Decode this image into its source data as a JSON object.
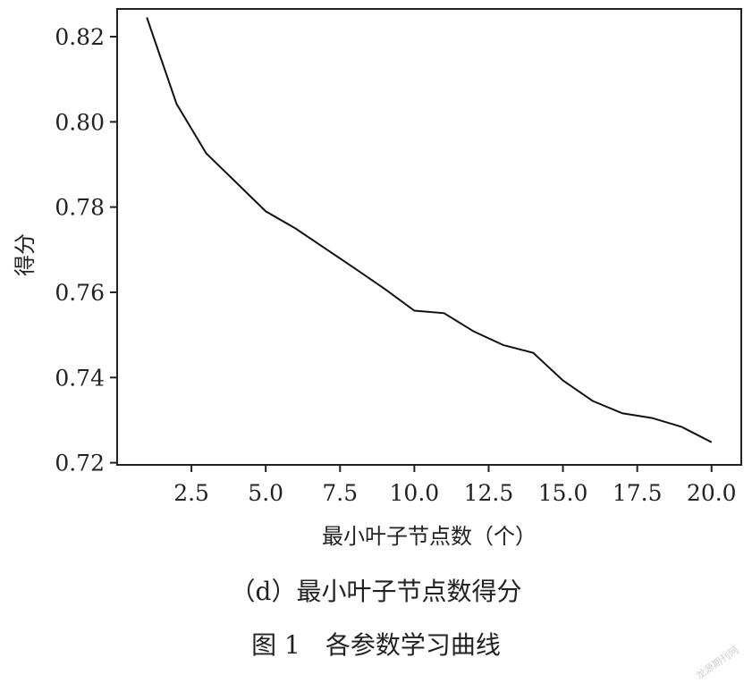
{
  "chart_data": {
    "type": "line",
    "title": "",
    "xlabel": "最小叶子节点数（个）",
    "ylabel": "得分",
    "xlim": [
      0.0,
      21.0
    ],
    "ylim": [
      0.7195,
      0.8265
    ],
    "xticks": [
      2.5,
      5.0,
      7.5,
      10.0,
      12.5,
      15.0,
      17.5,
      20.0
    ],
    "xtick_labels": [
      "2.5",
      "5.0",
      "7.5",
      "10.0",
      "12.5",
      "15.0",
      "17.5",
      "20.0"
    ],
    "yticks": [
      0.72,
      0.74,
      0.76,
      0.78,
      0.8,
      0.82
    ],
    "ytick_labels": [
      "0.72",
      "0.74",
      "0.76",
      "0.78",
      "0.80",
      "0.82"
    ],
    "grid": false,
    "series": [
      {
        "color": "#111111",
        "x": [
          1,
          2,
          3,
          4,
          5,
          6,
          7,
          8,
          9,
          10,
          11,
          12,
          13,
          14,
          15,
          16,
          17,
          18,
          19,
          20
        ],
        "y": [
          0.8245,
          0.8042,
          0.7926,
          0.7858,
          0.779,
          0.775,
          0.7703,
          0.7656,
          0.7608,
          0.7557,
          0.7551,
          0.7508,
          0.7476,
          0.7458,
          0.7393,
          0.7345,
          0.7316,
          0.7305,
          0.7284,
          0.7248
        ]
      }
    ]
  },
  "captions": {
    "sub": "（d）最小叶子节点数得分",
    "figure": "图 1　各参数学习曲线"
  },
  "watermark": "龙源期刊网"
}
